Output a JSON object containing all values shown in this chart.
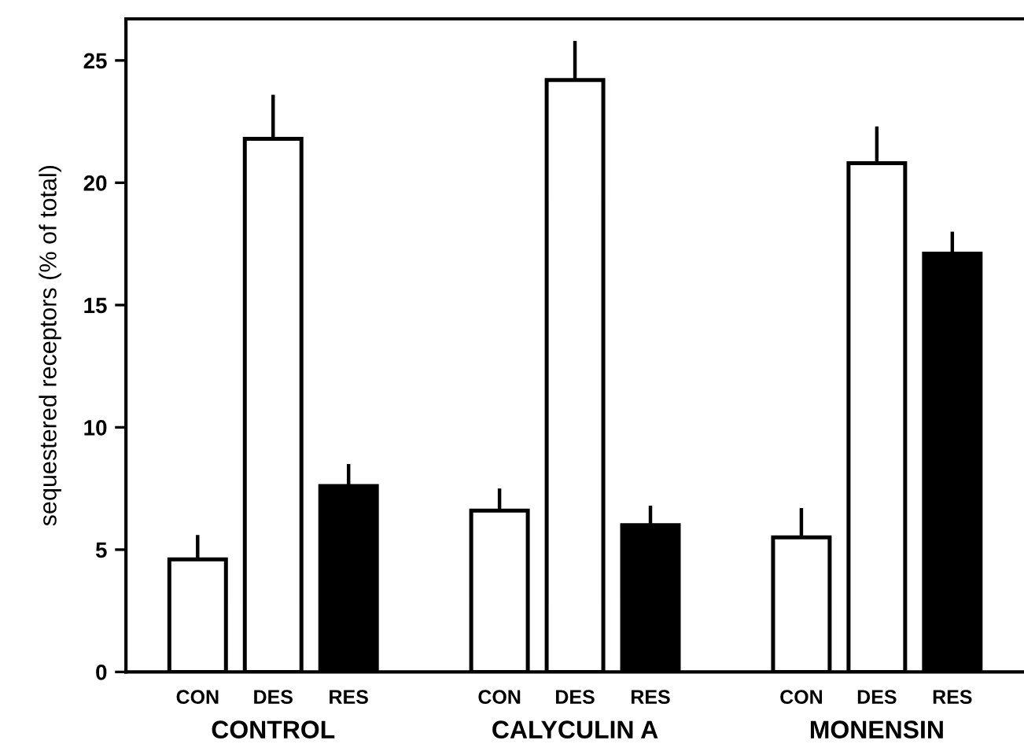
{
  "chart_data": {
    "type": "bar",
    "ylabel": "sequestered receptors (% of total)",
    "categories": [
      "CON",
      "DES",
      "RES",
      null,
      "CON",
      "DES",
      "RES",
      null,
      "CON",
      "DES",
      "RES"
    ],
    "values": [
      4.6,
      21.8,
      7.6,
      null,
      6.6,
      24.2,
      6.0,
      null,
      5.5,
      20.8,
      17.1
    ],
    "colors": [
      "#ffffff",
      "#ffffff",
      "#000000",
      null,
      "#ffffff",
      "#ffffff",
      "#000000",
      null,
      "#ffffff",
      "#ffffff",
      "#000000"
    ],
    "errors": [
      [
        4.6,
        5.6
      ],
      [
        21.8,
        23.6
      ],
      [
        7.6,
        8.5
      ],
      null,
      [
        6.6,
        7.5
      ],
      [
        24.2,
        25.8
      ],
      [
        6.0,
        6.8
      ],
      null,
      [
        5.5,
        6.7
      ],
      [
        20.8,
        22.3
      ],
      [
        17.1,
        18.0
      ]
    ],
    "annotations": [
      "CONTROL",
      "CALYCULIN A",
      "MONENSIN"
    ],
    "ylim": [
      0,
      26.7
    ],
    "yticks": [
      0,
      5,
      10,
      15,
      20,
      25
    ],
    "grid": false,
    "legend": false
  }
}
